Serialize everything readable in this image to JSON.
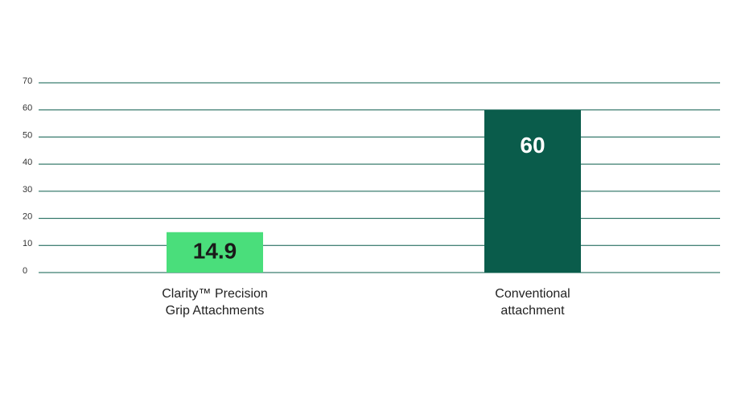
{
  "chart_data": {
    "type": "bar",
    "categories": [
      [
        "Clarity™ Precision",
        "Grip Attachments"
      ],
      [
        "Conventional",
        "attachment"
      ]
    ],
    "values": [
      14.9,
      60
    ],
    "colors": [
      "#4ade7b",
      "#0a5c4b"
    ],
    "ylim": [
      0,
      70
    ],
    "yticks": [
      0,
      10,
      20,
      30,
      40,
      50,
      60,
      70
    ],
    "grid": true
  }
}
